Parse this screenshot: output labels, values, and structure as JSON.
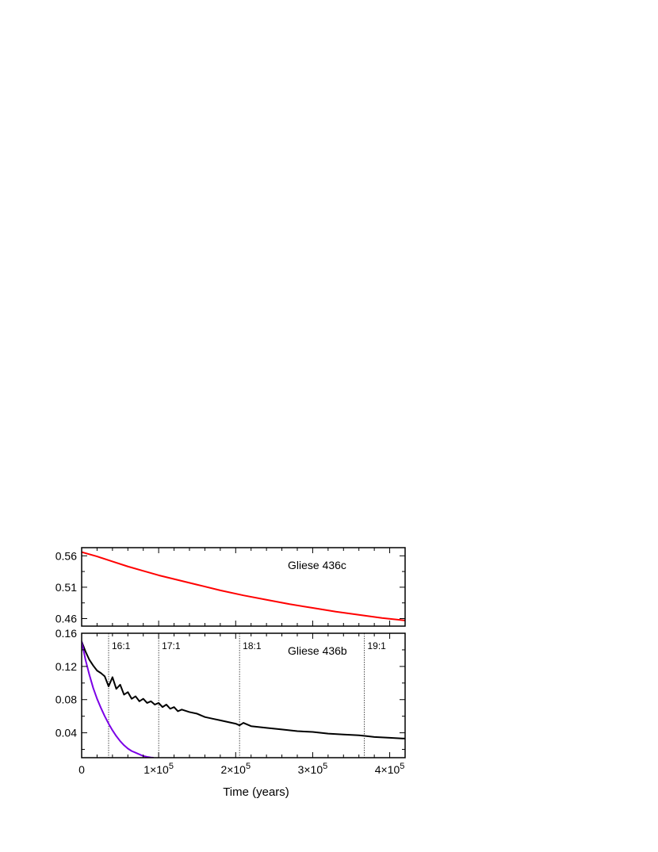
{
  "chart_data": [
    {
      "type": "line",
      "panel": "top",
      "label": "Gliese 436c",
      "xlim": [
        0,
        420000
      ],
      "ylim": [
        0.448,
        0.573
      ],
      "yticks": [
        0.46,
        0.51,
        0.56
      ],
      "ytick_labels": [
        "0.46",
        "0.51",
        "0.56"
      ],
      "series": [
        {
          "color": "#ff0000",
          "x": [
            0,
            20000,
            40000,
            60000,
            80000,
            100000,
            120000,
            150000,
            180000,
            210000,
            240000,
            270000,
            300000,
            330000,
            360000,
            390000,
            420000
          ],
          "y": [
            0.566,
            0.559,
            0.551,
            0.543,
            0.536,
            0.529,
            0.523,
            0.514,
            0.505,
            0.497,
            0.49,
            0.483,
            0.477,
            0.471,
            0.466,
            0.461,
            0.457
          ]
        }
      ]
    },
    {
      "type": "line",
      "panel": "bottom",
      "label": "Gliese 436b",
      "xlim": [
        0,
        420000
      ],
      "ylim": [
        0.01,
        0.16
      ],
      "yticks": [
        0.04,
        0.08,
        0.12,
        0.16
      ],
      "ytick_labels": [
        "0.04",
        "0.08",
        "0.12",
        "0.16"
      ],
      "xticks": [
        0,
        100000,
        200000,
        300000,
        400000
      ],
      "xtick_labels": [
        {
          "mantissa": "0",
          "exponent": ""
        },
        {
          "mantissa": "1×10",
          "exponent": "5"
        },
        {
          "mantissa": "2×10",
          "exponent": "5"
        },
        {
          "mantissa": "3×10",
          "exponent": "5"
        },
        {
          "mantissa": "4×10",
          "exponent": "5"
        }
      ],
      "xlabel": "Time (years)",
      "resonances": [
        {
          "label": "16:1",
          "x": 35000
        },
        {
          "label": "17:1",
          "x": 100000
        },
        {
          "label": "18:1",
          "x": 205000
        },
        {
          "label": "19:1",
          "x": 367000
        }
      ],
      "series": [
        {
          "color": "#000000",
          "x": [
            0,
            5000,
            10000,
            15000,
            20000,
            25000,
            30000,
            35000,
            40000,
            45000,
            50000,
            55000,
            60000,
            65000,
            70000,
            75000,
            80000,
            85000,
            90000,
            95000,
            100000,
            105000,
            110000,
            115000,
            120000,
            125000,
            130000,
            140000,
            150000,
            160000,
            170000,
            180000,
            190000,
            200000,
            205000,
            210000,
            220000,
            240000,
            260000,
            280000,
            300000,
            320000,
            340000,
            360000,
            370000,
            380000,
            400000,
            420000
          ],
          "y": [
            0.15,
            0.138,
            0.128,
            0.121,
            0.115,
            0.112,
            0.108,
            0.096,
            0.107,
            0.093,
            0.098,
            0.086,
            0.089,
            0.081,
            0.084,
            0.078,
            0.081,
            0.076,
            0.078,
            0.074,
            0.076,
            0.071,
            0.074,
            0.069,
            0.071,
            0.066,
            0.068,
            0.065,
            0.063,
            0.059,
            0.057,
            0.055,
            0.053,
            0.051,
            0.049,
            0.052,
            0.048,
            0.046,
            0.044,
            0.042,
            0.041,
            0.039,
            0.038,
            0.037,
            0.036,
            0.035,
            0.034,
            0.033
          ]
        },
        {
          "color": "#7b00e6",
          "x": [
            0,
            5000,
            10000,
            15000,
            20000,
            25000,
            30000,
            35000,
            40000,
            45000,
            50000,
            55000,
            60000,
            65000,
            70000,
            75000,
            80000,
            85000,
            90000,
            93000
          ],
          "y": [
            0.15,
            0.128,
            0.11,
            0.094,
            0.081,
            0.07,
            0.06,
            0.051,
            0.043,
            0.036,
            0.03,
            0.025,
            0.021,
            0.018,
            0.016,
            0.014,
            0.012,
            0.011,
            0.0103,
            0.01
          ]
        }
      ]
    }
  ]
}
